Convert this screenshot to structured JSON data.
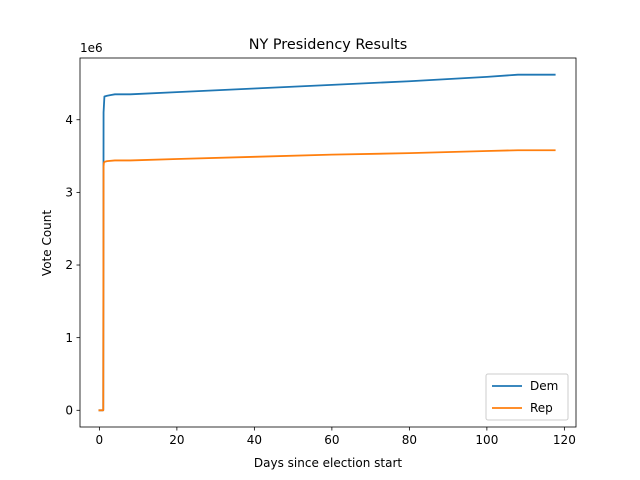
{
  "chart_data": {
    "type": "line",
    "title": "NY Presidency Results",
    "xlabel": "Days since election start",
    "ylabel": "Vote Count",
    "y_offset_label": "1e6",
    "xlim": [
      -5,
      123
    ],
    "ylim": [
      -230000,
      4850000
    ],
    "x_ticks": [
      0,
      20,
      40,
      60,
      80,
      100,
      120
    ],
    "y_ticks": [
      0,
      1000000,
      2000000,
      3000000,
      4000000
    ],
    "y_tick_labels": [
      "0",
      "1",
      "2",
      "3",
      "4"
    ],
    "grid": false,
    "legend_position": "lower-right",
    "series": [
      {
        "name": "Dem",
        "color": "#1f77b4",
        "points": [
          [
            0.0,
            0
          ],
          [
            0.5,
            0
          ],
          [
            1.0,
            0
          ],
          [
            1.08,
            4100000
          ],
          [
            1.15,
            4170000
          ],
          [
            1.3,
            4320000
          ],
          [
            2.0,
            4330000
          ],
          [
            3.0,
            4340000
          ],
          [
            4.0,
            4350000
          ],
          [
            8.0,
            4350000
          ],
          [
            20.0,
            4380000
          ],
          [
            40.0,
            4430000
          ],
          [
            60.0,
            4480000
          ],
          [
            80.0,
            4530000
          ],
          [
            100.0,
            4590000
          ],
          [
            108.0,
            4620000
          ],
          [
            117.5,
            4620000
          ]
        ]
      },
      {
        "name": "Rep",
        "color": "#ff7f0e",
        "points": [
          [
            0.0,
            0
          ],
          [
            0.5,
            0
          ],
          [
            1.0,
            0
          ],
          [
            1.08,
            3350000
          ],
          [
            1.15,
            3400000
          ],
          [
            1.3,
            3420000
          ],
          [
            2.0,
            3430000
          ],
          [
            4.0,
            3440000
          ],
          [
            8.0,
            3440000
          ],
          [
            20.0,
            3460000
          ],
          [
            40.0,
            3490000
          ],
          [
            60.0,
            3520000
          ],
          [
            80.0,
            3540000
          ],
          [
            100.0,
            3570000
          ],
          [
            108.0,
            3580000
          ],
          [
            117.5,
            3580000
          ]
        ]
      }
    ]
  }
}
